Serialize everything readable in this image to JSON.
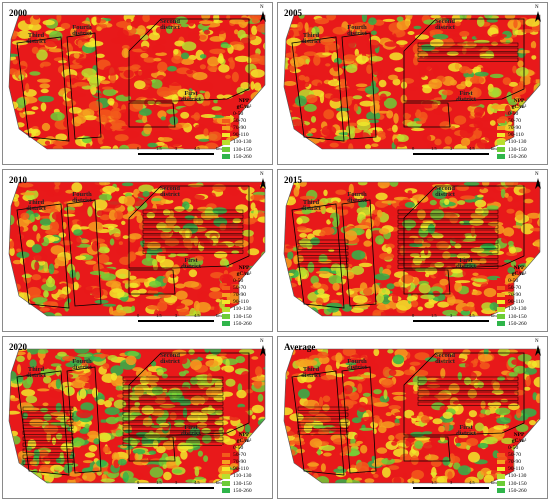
{
  "panels": [
    {
      "year": "2000",
      "first": "First district",
      "second": "Second district",
      "third": "Third district",
      "fourth": "Fourth district"
    },
    {
      "year": "2005",
      "first": "First district",
      "second": "Second district",
      "third": "Third district",
      "fourth": "Fourth district"
    },
    {
      "year": "2010",
      "first": "First district",
      "second": "Second district",
      "third": "Third district",
      "fourth": "Fourth district"
    },
    {
      "year": "2015",
      "first": "First district",
      "second": "Second district",
      "third": "Third district",
      "fourth": "Fourth district"
    },
    {
      "year": "2020",
      "first": "First district",
      "second": "Second district",
      "third": "Third district",
      "fourth": "Fourth district"
    },
    {
      "year": "Average",
      "first": "First district",
      "second": "Second district",
      "third": "Third district",
      "fourth": "Fourth district"
    }
  ],
  "legend": {
    "title": "NPP",
    "unit": "gC/m²",
    "classes": [
      {
        "label": "0-50",
        "color": "#e8191a"
      },
      {
        "label": "50-70",
        "color": "#f25a1b"
      },
      {
        "label": "70-90",
        "color": "#f5a11f"
      },
      {
        "label": "90-110",
        "color": "#f2e82a"
      },
      {
        "label": "110-130",
        "color": "#b9df2e"
      },
      {
        "label": "130-150",
        "color": "#6ccc37"
      },
      {
        "label": "150-260",
        "color": "#2fb54a"
      }
    ]
  },
  "scalebar": {
    "ticks": [
      "0",
      "1.5",
      "3",
      "4.5"
    ],
    "unit": "km"
  },
  "north_letter": "N"
}
